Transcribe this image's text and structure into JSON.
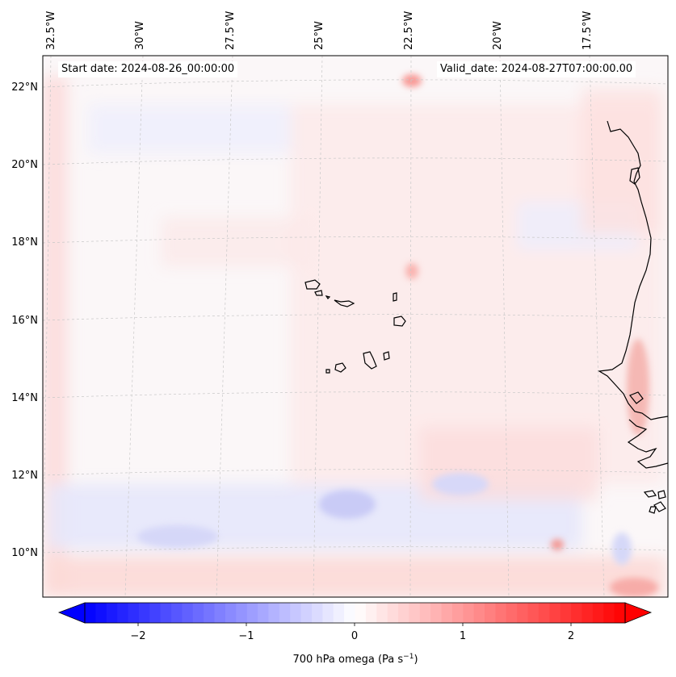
{
  "map": {
    "start_date": "Start date: 2024-08-26_00:00:00",
    "valid_date": "Valid_date: 2024-08-27T07:00:00.00",
    "lon_labels": [
      "32.5°W",
      "30°W",
      "27.5°W",
      "25°W",
      "22.5°W",
      "20°W",
      "17.5°W"
    ],
    "lat_labels": [
      "22°N",
      "20°N",
      "18°N",
      "16°N",
      "14°N",
      "12°N",
      "10°N"
    ],
    "field_name": "700 hPa omega",
    "field_units": "(Pa s",
    "field_units_sup": "−1",
    "field_units_close": ")"
  },
  "colorbar": {
    "ticks": [
      "−2",
      "−1",
      "0",
      "1",
      "2"
    ],
    "colors": {
      "negative": "#0000ff",
      "zero": "#ffffff",
      "positive": "#ff0000"
    },
    "extend": "both"
  },
  "colors": {
    "coastline": "#000000",
    "gridline": "#c8c8c8",
    "frame": "#000000"
  }
}
